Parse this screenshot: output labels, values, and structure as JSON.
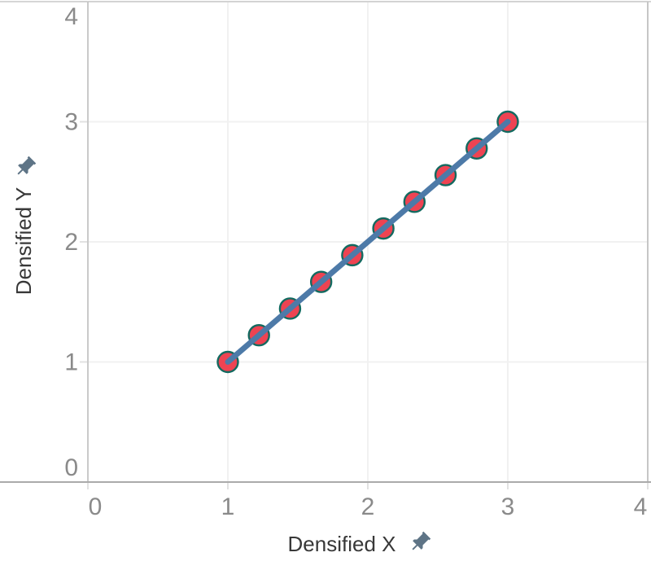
{
  "chart_data": {
    "type": "scatter",
    "title": "",
    "xlabel": "Densified X",
    "ylabel": "Densified Y",
    "x": [
      1,
      1.2222,
      1.4444,
      1.6667,
      1.8889,
      2.1111,
      2.3333,
      2.5556,
      2.7778,
      3
    ],
    "y": [
      1,
      1.2222,
      1.4444,
      1.6667,
      1.8889,
      2.1111,
      2.3333,
      2.5556,
      2.7778,
      3
    ],
    "xlim": [
      0,
      4
    ],
    "ylim": [
      0,
      4
    ],
    "xticks": [
      0,
      1,
      2,
      3,
      4
    ],
    "yticks": [
      0,
      1,
      2,
      3,
      4
    ],
    "grid": true,
    "legend": false,
    "x_axis_pinned": true,
    "y_axis_pinned": true,
    "marker": {
      "fill": "#ee4352",
      "stroke": "#136a60",
      "radius": 12.5,
      "stroke_width": 2.4
    },
    "line": {
      "color": "#4d7aa8",
      "width": 7
    }
  },
  "colors": {
    "pin": "#5e7486",
    "tick_label": "#8a8a8a",
    "axis_title": "#383838",
    "grid_line": "#f1f1f1",
    "tick_mark": "#e2e2e2",
    "axis_line": "#b5b5b5",
    "pane_border": "#c9c9c9",
    "background": "#ffffff"
  },
  "icons": {
    "x_axis_pin": "pushpin",
    "y_axis_pin": "pushpin"
  }
}
